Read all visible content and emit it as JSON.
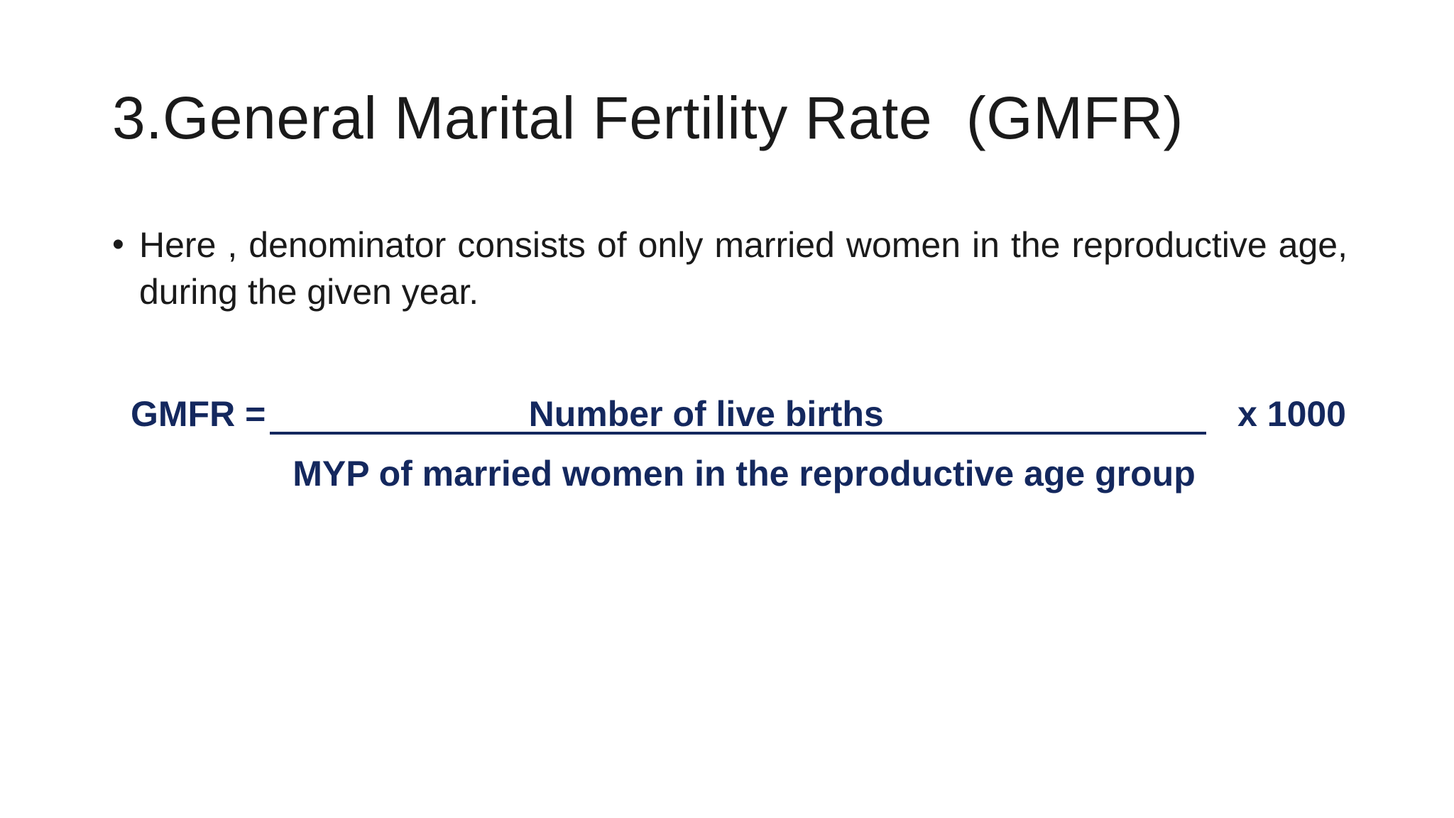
{
  "slide": {
    "title": "3.General Marital Fertility Rate  (GMFR)",
    "bullets": [
      {
        "marker": "•",
        "text": "Here , denominator consists of only married women in the reproductive age, during the given year."
      }
    ],
    "formula": {
      "label": "GMFR =",
      "numerator": "Number of live births",
      "denominator": "MYP of married women in the reproductive age group",
      "multiplier": "x 1000",
      "color": "#14285e"
    }
  }
}
